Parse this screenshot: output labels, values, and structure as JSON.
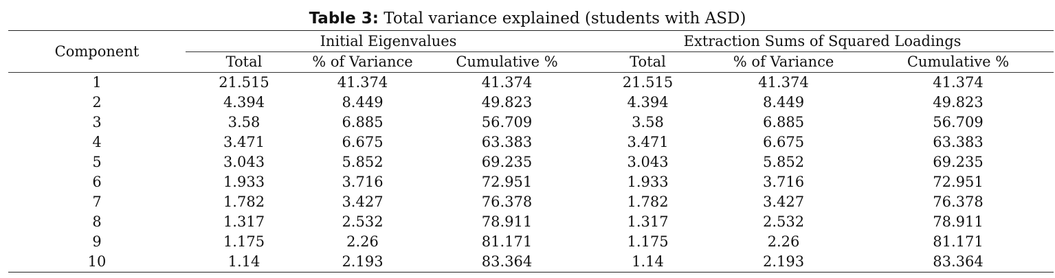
{
  "caption": {
    "label": "Table 3:",
    "text": " Total variance explained (students with ASD)"
  },
  "table": {
    "component_header": "Component",
    "groups": [
      "Initial Eigenvalues",
      "Extraction Sums of Squared Loadings"
    ],
    "subheaders": [
      "Total",
      "% of Variance",
      "Cumulative %",
      "Total",
      "% of Variance",
      "Cumulative %"
    ],
    "rows": [
      [
        "1",
        "21.515",
        "41.374",
        "41.374",
        "21.515",
        "41.374",
        "41.374"
      ],
      [
        "2",
        "4.394",
        "8.449",
        "49.823",
        "4.394",
        "8.449",
        "49.823"
      ],
      [
        "3",
        "3.58",
        "6.885",
        "56.709",
        "3.58",
        "6.885",
        "56.709"
      ],
      [
        "4",
        "3.471",
        "6.675",
        "63.383",
        "3.471",
        "6.675",
        "63.383"
      ],
      [
        "5",
        "3.043",
        "5.852",
        "69.235",
        "3.043",
        "5.852",
        "69.235"
      ],
      [
        "6",
        "1.933",
        "3.716",
        "72.951",
        "1.933",
        "3.716",
        "72.951"
      ],
      [
        "7",
        "1.782",
        "3.427",
        "76.378",
        "1.782",
        "3.427",
        "76.378"
      ],
      [
        "8",
        "1.317",
        "2.532",
        "78.911",
        "1.317",
        "2.532",
        "78.911"
      ],
      [
        "9",
        "1.175",
        "2.26",
        "81.171",
        "1.175",
        "2.26",
        "81.171"
      ],
      [
        "10",
        "1.14",
        "2.193",
        "83.364",
        "1.14",
        "2.193",
        "83.364"
      ]
    ]
  }
}
